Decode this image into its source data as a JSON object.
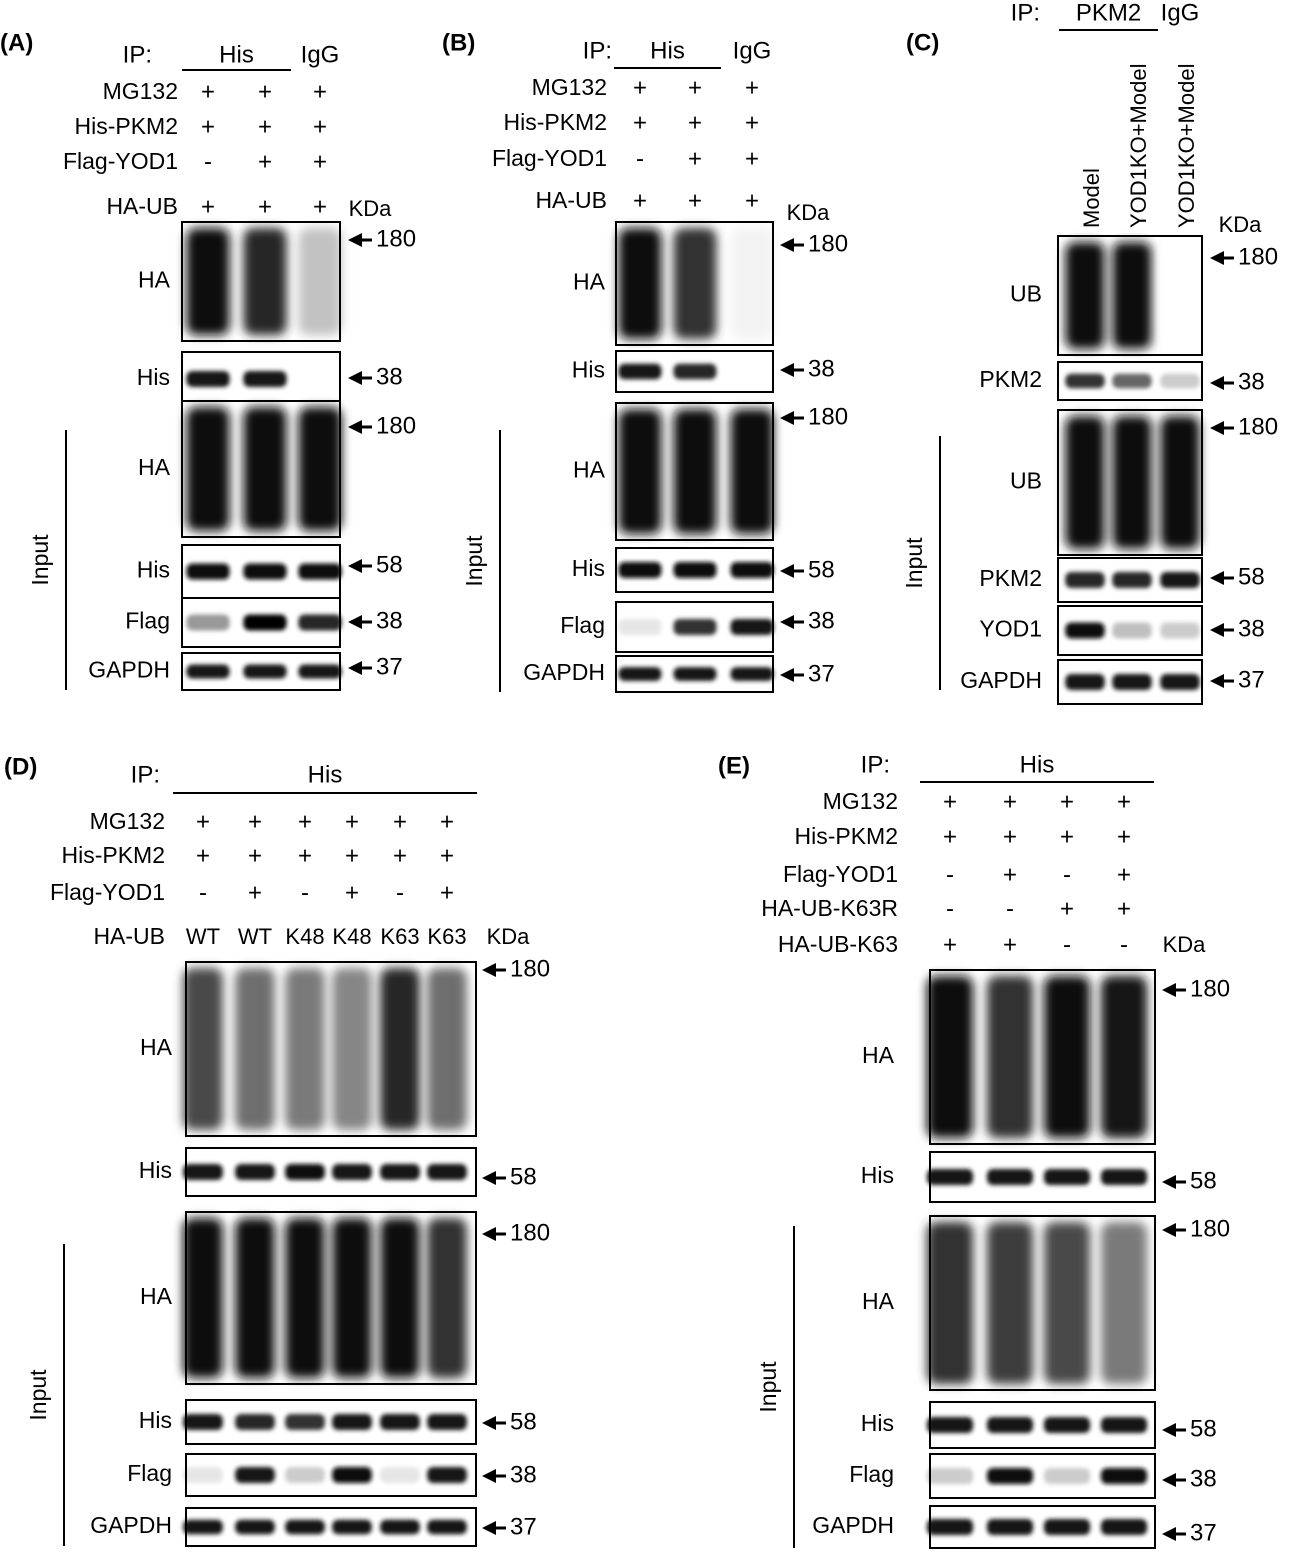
{
  "panels": [
    {
      "id": "A",
      "label": "(A)",
      "ip_label": "IP:",
      "ip_groups": [
        {
          "text": "His",
          "lanes": [
            0,
            1
          ],
          "underline": true
        },
        {
          "text": "IgG",
          "lanes": [
            2
          ],
          "underline": false
        }
      ],
      "treatments": [
        {
          "name": "MG132",
          "values": [
            "+",
            "+",
            "+"
          ]
        },
        {
          "name": "His-PKM2",
          "values": [
            "+",
            "+",
            "+"
          ]
        },
        {
          "name": "Flag-YOD1",
          "values": [
            "-",
            "+",
            "+"
          ]
        },
        {
          "name": "HA-UB",
          "values": [
            "+",
            "+",
            "+"
          ]
        }
      ],
      "kda_header": "KDa",
      "input_label": "Input",
      "blots": [
        {
          "label": "HA",
          "markers": [
            "180"
          ],
          "intensity": [
            1.0,
            0.9,
            0.25
          ]
        },
        {
          "label": "His",
          "markers": [
            "38"
          ],
          "intensity": [
            0.9,
            0.9,
            0.0
          ]
        },
        {
          "label": "HA",
          "markers": [
            "180"
          ],
          "intensity": [
            1.0,
            1.0,
            1.0
          ]
        },
        {
          "label": "His",
          "markers": [
            "58"
          ],
          "intensity": [
            0.95,
            0.95,
            0.95
          ]
        },
        {
          "label": "Flag",
          "markers": [
            "38"
          ],
          "intensity": [
            0.4,
            1.0,
            0.85
          ]
        },
        {
          "label": "GAPDH",
          "markers": [
            "37"
          ],
          "intensity": [
            0.9,
            0.9,
            0.9
          ]
        }
      ]
    },
    {
      "id": "B",
      "label": "(B)",
      "ip_label": "IP:",
      "ip_groups": [
        {
          "text": "His",
          "lanes": [
            0,
            1
          ],
          "underline": true
        },
        {
          "text": "IgG",
          "lanes": [
            2
          ],
          "underline": false
        }
      ],
      "treatments": [
        {
          "name": "MG132",
          "values": [
            "+",
            "+",
            "+"
          ]
        },
        {
          "name": "His-PKM2",
          "values": [
            "+",
            "+",
            "+"
          ]
        },
        {
          "name": "Flag-YOD1",
          "values": [
            "-",
            "+",
            "+"
          ]
        },
        {
          "name": "HA-UB",
          "values": [
            "+",
            "+",
            "+"
          ]
        }
      ],
      "kda_header": "KDa",
      "input_label": "Input",
      "blots": [
        {
          "label": "HA",
          "markers": [
            "180"
          ],
          "intensity": [
            1.0,
            0.85,
            0.05
          ]
        },
        {
          "label": "His",
          "markers": [
            "38"
          ],
          "intensity": [
            0.9,
            0.85,
            0.0
          ]
        },
        {
          "label": "HA",
          "markers": [
            "180"
          ],
          "intensity": [
            1.0,
            1.0,
            1.0
          ]
        },
        {
          "label": "His",
          "markers": [
            "58"
          ],
          "intensity": [
            0.95,
            0.95,
            0.95
          ]
        },
        {
          "label": "Flag",
          "markers": [
            "38"
          ],
          "intensity": [
            0.1,
            0.8,
            0.9
          ]
        },
        {
          "label": "GAPDH",
          "markers": [
            "37"
          ],
          "intensity": [
            0.9,
            0.9,
            0.9
          ]
        }
      ]
    },
    {
      "id": "C",
      "label": "(C)",
      "ip_label": "IP:",
      "ip_groups": [
        {
          "text": "PKM2",
          "lanes": [
            0,
            1
          ],
          "underline": true
        },
        {
          "text": "IgG",
          "lanes": [
            2
          ],
          "underline": false
        }
      ],
      "lane_names": [
        "Model",
        "YOD1KO+Model",
        "YOD1KO+Model"
      ],
      "kda_header": "KDa",
      "input_label": "Input",
      "blots": [
        {
          "label": "UB",
          "markers": [
            "180"
          ],
          "intensity": [
            1.0,
            1.0,
            0.0
          ]
        },
        {
          "label": "PKM2",
          "markers": [
            "38"
          ],
          "intensity": [
            0.8,
            0.6,
            0.2
          ]
        },
        {
          "label": "UB",
          "markers": [
            "180"
          ],
          "intensity": [
            1.0,
            1.0,
            1.0
          ]
        },
        {
          "label": "PKM2",
          "markers": [
            "58"
          ],
          "intensity": [
            0.85,
            0.85,
            0.9
          ]
        },
        {
          "label": "YOD1",
          "markers": [
            "38"
          ],
          "intensity": [
            0.95,
            0.25,
            0.2
          ]
        },
        {
          "label": "GAPDH",
          "markers": [
            "37"
          ],
          "intensity": [
            0.9,
            0.9,
            0.9
          ]
        }
      ]
    },
    {
      "id": "D",
      "label": "(D)",
      "ip_label": "IP:",
      "ip_groups": [
        {
          "text": "His",
          "lanes": [
            0,
            1,
            2,
            3,
            4,
            5
          ],
          "underline": true
        }
      ],
      "treatments": [
        {
          "name": "MG132",
          "values": [
            "+",
            "+",
            "+",
            "+",
            "+",
            "+"
          ]
        },
        {
          "name": "His-PKM2",
          "values": [
            "+",
            "+",
            "+",
            "+",
            "+",
            "+"
          ]
        },
        {
          "name": "Flag-YOD1",
          "values": [
            "-",
            "+",
            "-",
            "+",
            "-",
            "+"
          ]
        },
        {
          "name": "HA-UB",
          "values": [
            "WT",
            "WT",
            "K48",
            "K48",
            "K63",
            "K63"
          ]
        }
      ],
      "kda_header": "KDa",
      "input_label": "Input",
      "blots": [
        {
          "label": "HA",
          "markers": [
            "180"
          ],
          "intensity": [
            0.75,
            0.6,
            0.55,
            0.5,
            0.9,
            0.6
          ]
        },
        {
          "label": "His",
          "markers": [
            "58"
          ],
          "intensity": [
            0.9,
            0.9,
            0.95,
            0.9,
            0.9,
            0.9
          ]
        },
        {
          "label": "HA",
          "markers": [
            "180"
          ],
          "intensity": [
            1.0,
            1.0,
            1.0,
            1.0,
            1.0,
            0.85
          ]
        },
        {
          "label": "His",
          "markers": [
            "58"
          ],
          "intensity": [
            0.9,
            0.85,
            0.8,
            0.9,
            0.9,
            0.9
          ]
        },
        {
          "label": "Flag",
          "markers": [
            "38"
          ],
          "intensity": [
            0.1,
            0.9,
            0.2,
            0.95,
            0.1,
            0.9
          ]
        },
        {
          "label": "GAPDH",
          "markers": [
            "37"
          ],
          "intensity": [
            0.9,
            0.9,
            0.9,
            0.9,
            0.9,
            0.9
          ]
        }
      ]
    },
    {
      "id": "E",
      "label": "(E)",
      "ip_label": "IP:",
      "ip_groups": [
        {
          "text": "His",
          "lanes": [
            0,
            1,
            2,
            3
          ],
          "underline": true
        }
      ],
      "treatments": [
        {
          "name": "MG132",
          "values": [
            "+",
            "+",
            "+",
            "+"
          ]
        },
        {
          "name": "His-PKM2",
          "values": [
            "+",
            "+",
            "+",
            "+"
          ]
        },
        {
          "name": "Flag-YOD1",
          "values": [
            "-",
            "+",
            "-",
            "+"
          ]
        },
        {
          "name": "HA-UB-K63R",
          "values": [
            "-",
            "-",
            "+",
            "+"
          ]
        },
        {
          "name": "HA-UB-K63",
          "values": [
            "+",
            "+",
            "-",
            "-"
          ]
        }
      ],
      "kda_header": "KDa",
      "input_label": "Input",
      "blots": [
        {
          "label": "HA",
          "markers": [
            "180"
          ],
          "intensity": [
            1.0,
            0.85,
            1.0,
            0.95
          ]
        },
        {
          "label": "His",
          "markers": [
            "58"
          ],
          "intensity": [
            0.9,
            0.9,
            0.9,
            0.9
          ]
        },
        {
          "label": "HA",
          "markers": [
            "180"
          ],
          "intensity": [
            0.85,
            0.8,
            0.75,
            0.55
          ]
        },
        {
          "label": "His",
          "markers": [
            "58"
          ],
          "intensity": [
            0.9,
            0.9,
            0.9,
            0.9
          ]
        },
        {
          "label": "Flag",
          "markers": [
            "38"
          ],
          "intensity": [
            0.2,
            0.95,
            0.2,
            0.95
          ]
        },
        {
          "label": "GAPDH",
          "markers": [
            "37"
          ],
          "intensity": [
            0.9,
            0.9,
            0.9,
            0.9
          ]
        }
      ]
    }
  ]
}
